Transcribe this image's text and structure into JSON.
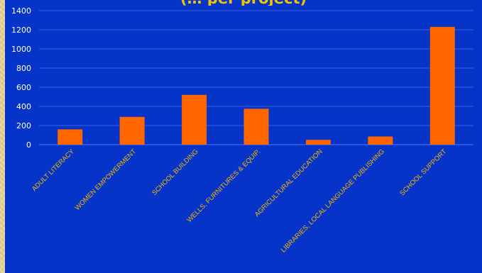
{
  "colors": {
    "background": "#0634c9",
    "bar": "#ff6600",
    "labels": "#f2b800",
    "axis_text": "#ffffff",
    "grid": "#3b5fe0"
  },
  "chart_data": {
    "type": "bar",
    "title": "(… per project)",
    "xlabel": "",
    "ylabel": "",
    "ylim": [
      0,
      1400
    ],
    "yticks": [
      0,
      200,
      400,
      600,
      800,
      1000,
      1200,
      1400
    ],
    "grid": true,
    "categories": [
      "ADULT LITERACY",
      "WOMEN EMPOWERMENT",
      "SCHOOL BUILDING",
      "WELLS, FURNITURES & EQUIP.",
      "AGRICULTURAL EDUCATION",
      "LIBRARIES, LOCAL LANGUAGE PUBLISHING",
      "SCHOOL SUPPORT"
    ],
    "values": [
      160,
      290,
      520,
      375,
      50,
      85,
      1230
    ]
  }
}
